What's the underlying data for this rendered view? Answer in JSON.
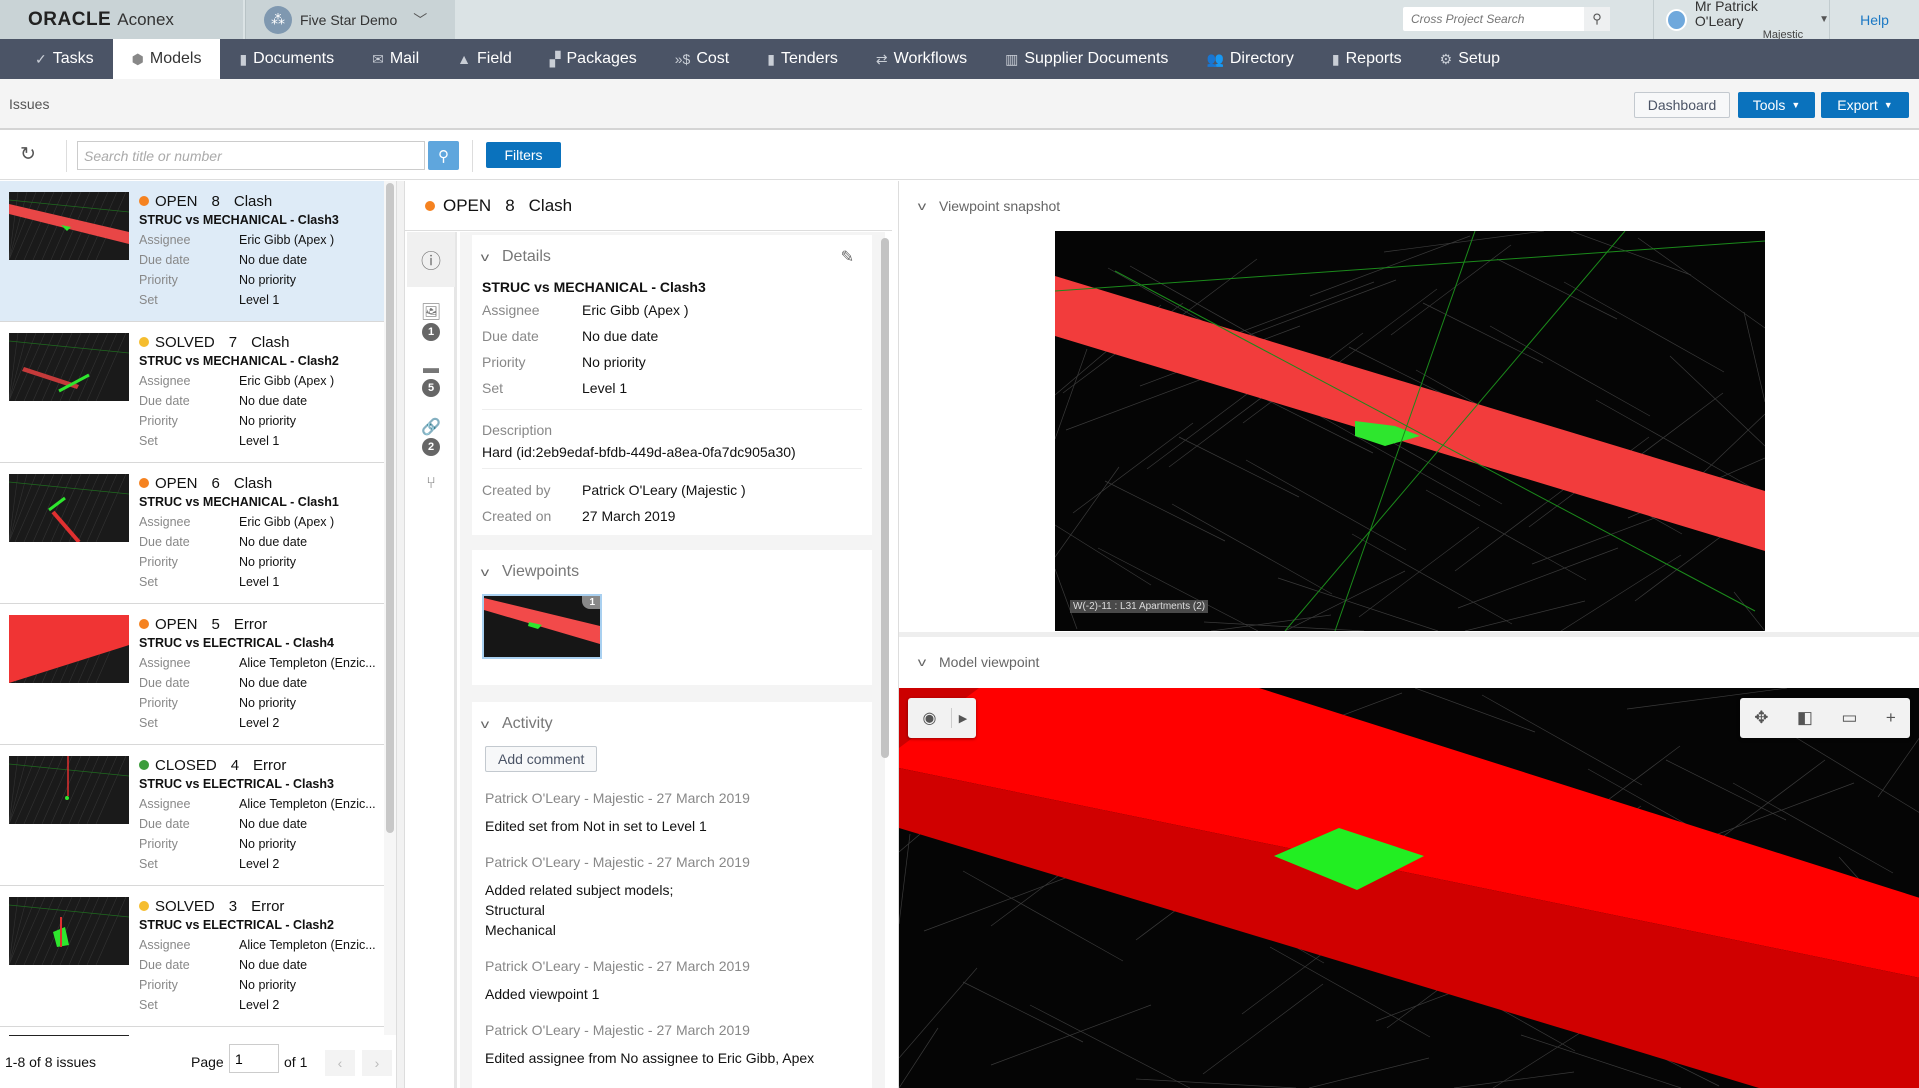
{
  "header": {
    "brand": "ORACLE",
    "product": "Aconex",
    "project": "Five Star Demo",
    "cross_search_placeholder": "Cross Project Search",
    "user_name": "Mr Patrick O'Leary",
    "user_company": "Majestic",
    "help": "Help"
  },
  "nav": [
    {
      "label": "Tasks",
      "icon": "check-icon",
      "glyph": "✓"
    },
    {
      "label": "Models",
      "icon": "cube-icon",
      "glyph": "⬢",
      "active": true
    },
    {
      "label": "Documents",
      "icon": "document-icon",
      "glyph": "▮"
    },
    {
      "label": "Mail",
      "icon": "mail-icon",
      "glyph": "✉"
    },
    {
      "label": "Field",
      "icon": "field-icon",
      "glyph": "▲"
    },
    {
      "label": "Packages",
      "icon": "packages-icon",
      "glyph": "▞"
    },
    {
      "label": "Cost",
      "icon": "cost-icon",
      "glyph": "»$"
    },
    {
      "label": "Tenders",
      "icon": "tenders-icon",
      "glyph": "▮"
    },
    {
      "label": "Workflows",
      "icon": "workflows-icon",
      "glyph": "⇄"
    },
    {
      "label": "Supplier Documents",
      "icon": "supplier-documents-icon",
      "glyph": "▥"
    },
    {
      "label": "Directory",
      "icon": "directory-icon",
      "glyph": "👥"
    },
    {
      "label": "Reports",
      "icon": "reports-icon",
      "glyph": "▮"
    },
    {
      "label": "Setup",
      "icon": "gear-icon",
      "glyph": "⚙"
    }
  ],
  "page": {
    "title": "Issues",
    "dashboard": "Dashboard",
    "tools": "Tools",
    "export": "Export"
  },
  "toolbar": {
    "search_placeholder": "Search title or number",
    "filters": "Filters"
  },
  "status_colors": {
    "OPEN": "#f58220",
    "SOLVED": "#f5bd2f",
    "CLOSED": "#3c9c3c"
  },
  "labels": {
    "assignee": "Assignee",
    "due_date": "Due date",
    "priority": "Priority",
    "set": "Set"
  },
  "issues": [
    {
      "status": "OPEN",
      "number": "8",
      "type": "Clash",
      "title": "STRUC vs MECHANICAL - Clash3",
      "assignee": "Eric Gibb (Apex )",
      "due_date": "No due date",
      "priority": "No priority",
      "set": "Level 1",
      "selected": true
    },
    {
      "status": "SOLVED",
      "number": "7",
      "type": "Clash",
      "title": "STRUC vs MECHANICAL - Clash2",
      "assignee": "Eric Gibb (Apex )",
      "due_date": "No due date",
      "priority": "No priority",
      "set": "Level 1"
    },
    {
      "status": "OPEN",
      "number": "6",
      "type": "Clash",
      "title": "STRUC vs MECHANICAL - Clash1",
      "assignee": "Eric Gibb (Apex )",
      "due_date": "No due date",
      "priority": "No priority",
      "set": "Level 1"
    },
    {
      "status": "OPEN",
      "number": "5",
      "type": "Error",
      "title": "STRUC vs ELECTRICAL - Clash4",
      "assignee": "Alice Templeton (Enzic...",
      "due_date": "No due date",
      "priority": "No priority",
      "set": "Level 2"
    },
    {
      "status": "CLOSED",
      "number": "4",
      "type": "Error",
      "title": "STRUC vs ELECTRICAL - Clash3",
      "assignee": "Alice Templeton (Enzic...",
      "due_date": "No due date",
      "priority": "No priority",
      "set": "Level 2"
    },
    {
      "status": "SOLVED",
      "number": "3",
      "type": "Error",
      "title": "STRUC vs ELECTRICAL - Clash2",
      "assignee": "Alice Templeton (Enzic...",
      "due_date": "No due date",
      "priority": "No priority",
      "set": "Level 2"
    }
  ],
  "footer": {
    "count": "1-8 of 8 issues",
    "page_label": "Page",
    "page": "1",
    "of": "of 1"
  },
  "detail": {
    "status": "OPEN",
    "number": "8",
    "type": "Clash",
    "rail_badges": {
      "viewpoints": "1",
      "comments": "5",
      "links": "2"
    },
    "details_heading": "Details",
    "title": "STRUC vs MECHANICAL - Clash3",
    "assignee": "Eric Gibb (Apex )",
    "due_date": "No due date",
    "priority": "No priority",
    "set": "Level 1",
    "description_label": "Description",
    "description": "Hard (id:2eb9edaf-bfdb-449d-a8ea-0fa7dc905a30)",
    "created_by_label": "Created by",
    "created_by": "Patrick O'Leary (Majestic )",
    "created_on_label": "Created on",
    "created_on": "27 March 2019",
    "viewpoints_heading": "Viewpoints",
    "viewpoint_badge": "1",
    "activity_heading": "Activity",
    "add_comment": "Add comment",
    "activity": [
      {
        "meta": "Patrick O'Leary - Majestic - 27 March 2019",
        "lines": [
          "Edited set from Not in set to Level 1"
        ]
      },
      {
        "meta": "Patrick O'Leary - Majestic - 27 March 2019",
        "lines": [
          "Added related subject models;",
          "Structural",
          "Mechanical"
        ]
      },
      {
        "meta": "Patrick O'Leary - Majestic - 27 March 2019",
        "lines": [
          "Added viewpoint 1"
        ]
      },
      {
        "meta": "Patrick O'Leary - Majestic - 27 March 2019",
        "lines": [
          "Edited assignee from No assignee to Eric Gibb, Apex"
        ]
      }
    ]
  },
  "right": {
    "snapshot_heading": "Viewpoint snapshot",
    "snapshot_caption": "W(-2)-11 : L31 Apartments (2)",
    "model_heading": "Model viewpoint"
  }
}
